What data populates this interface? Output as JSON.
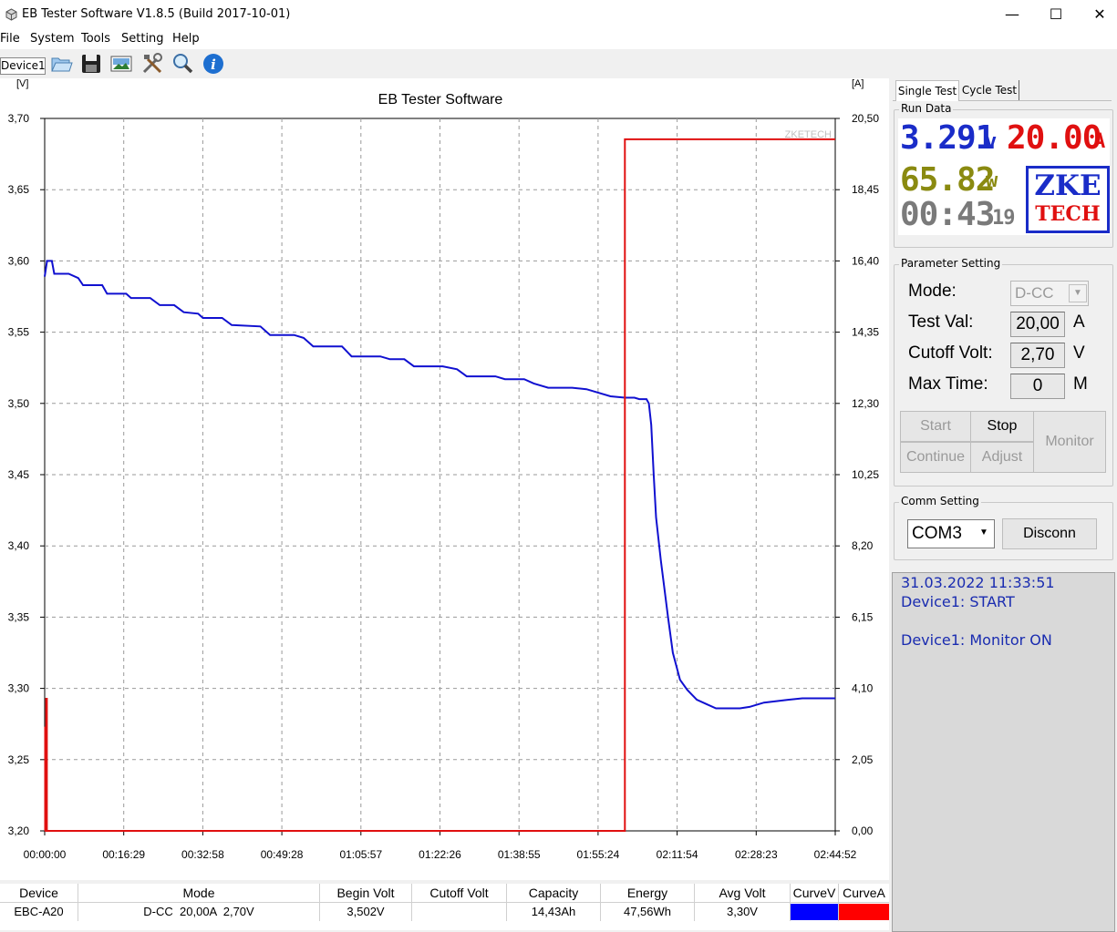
{
  "window": {
    "title": "EB Tester Software V1.8.5 (Build 2017-10-01)",
    "minimize": "—",
    "maximize": "☐",
    "close": "✕"
  },
  "menu": [
    "File",
    "System",
    "Tools",
    "Setting",
    "Help"
  ],
  "toolbar": {
    "device_tab": "Device1",
    "icons": [
      "open-folder-icon",
      "save-icon",
      "image-icon",
      "tools-icon",
      "zoom-icon",
      "info-icon"
    ]
  },
  "tabs": [
    "Single Test",
    "Cycle Test"
  ],
  "run_data": {
    "label": "Run Data",
    "voltage": "3.291",
    "voltage_unit": "v",
    "current": "20.00",
    "current_unit": "A",
    "power": "65.82",
    "power_unit": "w",
    "time": "00:43",
    "time_sec": "19",
    "logo_top": "ZKE",
    "logo_bottom": "TECH",
    "colors": {
      "voltage": "#1a2cc8",
      "current": "#e01010",
      "power": "#8a8a10",
      "time": "#7a7a7a"
    }
  },
  "parameter_setting": {
    "label": "Parameter Setting",
    "mode_label": "Mode:",
    "mode_value": "D-CC",
    "test_val_label": "Test Val:",
    "test_val": "20,00",
    "test_val_unit": "A",
    "cutoff_label": "Cutoff Volt:",
    "cutoff_val": "2,70",
    "cutoff_unit": "V",
    "max_time_label": "Max Time:",
    "max_time_val": "0",
    "max_time_unit": "M",
    "buttons": {
      "start": "Start",
      "stop": "Stop",
      "monitor": "Monitor",
      "continue": "Continue",
      "adjust": "Adjust"
    }
  },
  "comm_setting": {
    "label": "Comm Setting",
    "port": "COM3",
    "disconnect": "Disconn"
  },
  "log": [
    "31.03.2022 11:33:51",
    "Device1: START",
    "",
    "Device1: Monitor ON"
  ],
  "chart_data": {
    "type": "line",
    "title": "EB Tester Software",
    "watermark": "ZKETECH",
    "left_unit": "[V]",
    "right_unit": "[A]",
    "y_left_ticks": [
      "3,70",
      "3,65",
      "3,60",
      "3,55",
      "3,50",
      "3,45",
      "3,40",
      "3,35",
      "3,30",
      "3,25",
      "3,20"
    ],
    "y_right_ticks": [
      "20,50",
      "18,45",
      "16,40",
      "14,35",
      "12,30",
      "10,25",
      "8,20",
      "6,15",
      "4,10",
      "2,05",
      "0,00"
    ],
    "x_ticks": [
      "00:00:00",
      "00:16:29",
      "00:32:58",
      "00:49:28",
      "01:05:57",
      "01:22:26",
      "01:38:55",
      "01:55:24",
      "02:11:54",
      "02:28:23",
      "02:44:52"
    ],
    "x_range_minutes": [
      0,
      164.87
    ],
    "ylim_left": [
      3.2,
      3.7
    ],
    "ylim_right": [
      0,
      20.5
    ],
    "grid": true,
    "series": [
      {
        "color": "#1010d0",
        "axis": "left",
        "points": [
          [
            0,
            3.589
          ],
          [
            0.5,
            3.6
          ],
          [
            1.5,
            3.6
          ],
          [
            2,
            3.591
          ],
          [
            5,
            3.591
          ],
          [
            7,
            3.588
          ],
          [
            8,
            3.583
          ],
          [
            12,
            3.583
          ],
          [
            13,
            3.577
          ],
          [
            17,
            3.577
          ],
          [
            18,
            3.574
          ],
          [
            22,
            3.574
          ],
          [
            24,
            3.569
          ],
          [
            27,
            3.569
          ],
          [
            29,
            3.564
          ],
          [
            32,
            3.563
          ],
          [
            33,
            3.56
          ],
          [
            37,
            3.56
          ],
          [
            39,
            3.555
          ],
          [
            45,
            3.554
          ],
          [
            47,
            3.548
          ],
          [
            52,
            3.548
          ],
          [
            54,
            3.546
          ],
          [
            56,
            3.54
          ],
          [
            62,
            3.54
          ],
          [
            64,
            3.533
          ],
          [
            70,
            3.533
          ],
          [
            72,
            3.531
          ],
          [
            75,
            3.531
          ],
          [
            77,
            3.526
          ],
          [
            83,
            3.526
          ],
          [
            86,
            3.524
          ],
          [
            88,
            3.519
          ],
          [
            94,
            3.519
          ],
          [
            96,
            3.517
          ],
          [
            100,
            3.517
          ],
          [
            102,
            3.514
          ],
          [
            105,
            3.511
          ],
          [
            110,
            3.511
          ],
          [
            113,
            3.51
          ],
          [
            115,
            3.508
          ],
          [
            118,
            3.505
          ],
          [
            121,
            3.504
          ],
          [
            123,
            3.504
          ],
          [
            124,
            3.503
          ],
          [
            125.5,
            3.503
          ],
          [
            126,
            3.5
          ],
          [
            126.5,
            3.485
          ],
          [
            127,
            3.45
          ],
          [
            127.5,
            3.42
          ],
          [
            128.5,
            3.39
          ],
          [
            130,
            3.35
          ],
          [
            131,
            3.325
          ],
          [
            132.5,
            3.306
          ],
          [
            134,
            3.299
          ],
          [
            136,
            3.292
          ],
          [
            138,
            3.289
          ],
          [
            140,
            3.286
          ],
          [
            145,
            3.286
          ],
          [
            147,
            3.287
          ],
          [
            150,
            3.29
          ],
          [
            155,
            3.292
          ],
          [
            158,
            3.293
          ],
          [
            164.87,
            3.293
          ]
        ]
      },
      {
        "color": "#e01010",
        "axis": "right",
        "points": [
          [
            0,
            0
          ],
          [
            0.1,
            0
          ],
          [
            0.1,
            3.0
          ],
          [
            0.2,
            0
          ],
          [
            0.3,
            0
          ],
          [
            0.3,
            3.8
          ],
          [
            0.45,
            3.8
          ],
          [
            0.45,
            0
          ],
          [
            121,
            0
          ],
          [
            121,
            19.9
          ],
          [
            164.87,
            19.9
          ]
        ]
      }
    ]
  },
  "table": {
    "headers": [
      "Device",
      "Mode",
      "Begin Volt",
      "Cutoff Volt",
      "Capacity",
      "Energy",
      "Avg Volt",
      "CurveV",
      "CurveA"
    ],
    "row": [
      "EBC-A20",
      "D-CC  20,00A  2,70V",
      "3,502V",
      "",
      "14,43Ah",
      "47,56Wh",
      "3,30V",
      "",
      ""
    ],
    "curve_colors": [
      "#0000ff",
      "#ff0000"
    ]
  }
}
